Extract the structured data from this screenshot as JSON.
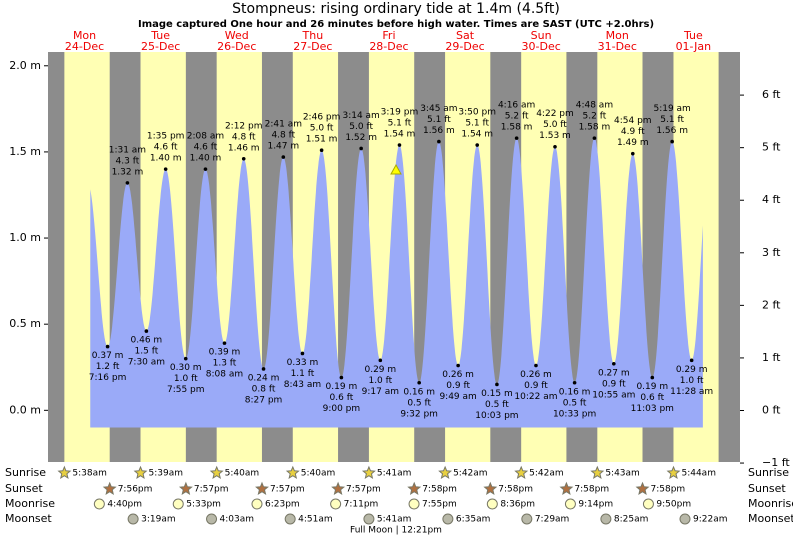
{
  "chart_data": {
    "type": "tide",
    "title": "Stompneus: rising  ordinary tide at 1.4m (4.5ft)",
    "subtitle": "Image captured One hour and 26 minutes before high water. Times are SAST (UTC +2.0hrs)",
    "ylim": [
      -0.3,
      2.08
    ],
    "yticks": [
      {
        "value": 0,
        "label": "0.0 m"
      },
      {
        "value": 0.5,
        "label": "0.5 m"
      },
      {
        "value": 1,
        "label": "1.0 m"
      },
      {
        "value": 1.5,
        "label": "1.5 m"
      },
      {
        "value": 2,
        "label": "2.0 m"
      }
    ],
    "y2lim": [
      -0.98,
      6.82
    ],
    "y2ticks": [
      {
        "value": -1,
        "label": "−1 ft"
      },
      {
        "value": 0,
        "label": "0 ft"
      },
      {
        "value": 1,
        "label": "1 ft"
      },
      {
        "value": 2,
        "label": "2 ft"
      },
      {
        "value": 3,
        "label": "3 ft"
      },
      {
        "value": 4,
        "label": "4 ft"
      },
      {
        "value": 5,
        "label": "5 ft"
      },
      {
        "value": 6,
        "label": "6 ft"
      }
    ],
    "row_labels": [
      "Sunrise",
      "Sunset",
      "Moonrise",
      "Moonset"
    ],
    "moon_phase": "Full Moon | 12:21pm",
    "days": [
      {
        "weekday": "Mon",
        "date": "24-Dec",
        "sunrise": "5:38am",
        "sunset": "7:56pm",
        "moonrise": "4:40pm",
        "moonset": null,
        "tides": [
          {
            "time": "7:16 pm",
            "m": {
              "value": 0.37,
              "label": "0.37 m"
            },
            "ft": {
              "value": 1.2,
              "label": "1.2 ft"
            }
          }
        ]
      },
      {
        "weekday": "Tue",
        "date": "25-Dec",
        "sunrise": "5:39am",
        "sunset": "7:57pm",
        "moonrise": "5:33pm",
        "moonset": "3:19am",
        "tides": [
          {
            "time": "1:31 am",
            "m": {
              "value": 1.32,
              "label": "1.32 m"
            },
            "ft": {
              "value": 4.3,
              "label": "4.3 ft"
            }
          },
          {
            "time": "7:30 am",
            "m": {
              "value": 0.46,
              "label": "0.46 m"
            },
            "ft": {
              "value": 1.5,
              "label": "1.5 ft"
            }
          },
          {
            "time": "1:35 pm",
            "m": {
              "value": 1.4,
              "label": "1.40 m"
            },
            "ft": {
              "value": 4.6,
              "label": "4.6 ft"
            }
          },
          {
            "time": "7:55 pm",
            "m": {
              "value": 0.3,
              "label": "0.30 m"
            },
            "ft": {
              "value": 1.0,
              "label": "1.0 ft"
            }
          }
        ]
      },
      {
        "weekday": "Wed",
        "date": "26-Dec",
        "sunrise": "5:40am",
        "sunset": "7:57pm",
        "moonrise": "6:23pm",
        "moonset": "4:03am",
        "tides": [
          {
            "time": "2:08 am",
            "m": {
              "value": 1.4,
              "label": "1.40 m"
            },
            "ft": {
              "value": 4.6,
              "label": "4.6 ft"
            }
          },
          {
            "time": "8:08 am",
            "m": {
              "value": 0.39,
              "label": "0.39 m"
            },
            "ft": {
              "value": 1.3,
              "label": "1.3 ft"
            }
          },
          {
            "time": "2:12 pm",
            "m": {
              "value": 1.46,
              "label": "1.46 m"
            },
            "ft": {
              "value": 4.8,
              "label": "4.8 ft"
            }
          },
          {
            "time": "8:27 pm",
            "m": {
              "value": 0.24,
              "label": "0.24 m"
            },
            "ft": {
              "value": 0.8,
              "label": "0.8 ft"
            }
          }
        ]
      },
      {
        "weekday": "Thu",
        "date": "27-Dec",
        "sunrise": "5:40am",
        "sunset": "7:57pm",
        "moonrise": "7:11pm",
        "moonset": "4:51am",
        "tides": [
          {
            "time": "2:41 am",
            "m": {
              "value": 1.47,
              "label": "1.47 m"
            },
            "ft": {
              "value": 4.8,
              "label": "4.8 ft"
            }
          },
          {
            "time": "8:43 am",
            "m": {
              "value": 0.33,
              "label": "0.33 m"
            },
            "ft": {
              "value": 1.1,
              "label": "1.1 ft"
            }
          },
          {
            "time": "2:46 pm",
            "m": {
              "value": 1.51,
              "label": "1.51 m"
            },
            "ft": {
              "value": 5.0,
              "label": "5.0 ft"
            }
          },
          {
            "time": "9:00 pm",
            "m": {
              "value": 0.19,
              "label": "0.19 m"
            },
            "ft": {
              "value": 0.6,
              "label": "0.6 ft"
            }
          }
        ]
      },
      {
        "weekday": "Fri",
        "date": "28-Dec",
        "sunrise": "5:41am",
        "sunset": "7:58pm",
        "moonrise": "7:55pm",
        "moonset": "5:41am",
        "tides": [
          {
            "time": "3:14 am",
            "m": {
              "value": 1.52,
              "label": "1.52 m"
            },
            "ft": {
              "value": 5.0,
              "label": "5.0 ft"
            }
          },
          {
            "time": "9:17 am",
            "m": {
              "value": 0.29,
              "label": "0.29 m"
            },
            "ft": {
              "value": 1.0,
              "label": "1.0 ft"
            }
          },
          {
            "time": "3:19 pm",
            "m": {
              "value": 1.54,
              "label": "1.54 m"
            },
            "ft": {
              "value": 5.1,
              "label": "5.1 ft"
            }
          },
          {
            "time": "9:32 pm",
            "m": {
              "value": 0.16,
              "label": "0.16 m"
            },
            "ft": {
              "value": 0.5,
              "label": "0.5 ft"
            }
          }
        ]
      },
      {
        "weekday": "Sat",
        "date": "29-Dec",
        "sunrise": "5:42am",
        "sunset": "7:58pm",
        "moonrise": "8:36pm",
        "moonset": "6:35am",
        "tides": [
          {
            "time": "3:45 am",
            "m": {
              "value": 1.56,
              "label": "1.56 m"
            },
            "ft": {
              "value": 5.1,
              "label": "5.1 ft"
            }
          },
          {
            "time": "9:49 am",
            "m": {
              "value": 0.26,
              "label": "0.26 m"
            },
            "ft": {
              "value": 0.9,
              "label": "0.9 ft"
            }
          },
          {
            "time": "3:50 pm",
            "m": {
              "value": 1.54,
              "label": "1.54 m"
            },
            "ft": {
              "value": 5.1,
              "label": "5.1 ft"
            }
          },
          {
            "time": "10:03 pm",
            "m": {
              "value": 0.15,
              "label": "0.15 m"
            },
            "ft": {
              "value": 0.5,
              "label": "0.5 ft"
            }
          }
        ]
      },
      {
        "weekday": "Sun",
        "date": "30-Dec",
        "sunrise": "5:42am",
        "sunset": "7:58pm",
        "moonrise": "9:14pm",
        "moonset": "7:29am",
        "tides": [
          {
            "time": "4:16 am",
            "m": {
              "value": 1.58,
              "label": "1.58 m"
            },
            "ft": {
              "value": 5.2,
              "label": "5.2 ft"
            }
          },
          {
            "time": "10:22 am",
            "m": {
              "value": 0.26,
              "label": "0.26 m"
            },
            "ft": {
              "value": 0.9,
              "label": "0.9 ft"
            }
          },
          {
            "time": "4:22 pm",
            "m": {
              "value": 1.53,
              "label": "1.53 m"
            },
            "ft": {
              "value": 5.0,
              "label": "5.0 ft"
            }
          },
          {
            "time": "10:33 pm",
            "m": {
              "value": 0.16,
              "label": "0.16 m"
            },
            "ft": {
              "value": 0.5,
              "label": "0.5 ft"
            }
          }
        ]
      },
      {
        "weekday": "Mon",
        "date": "31-Dec",
        "sunrise": "5:43am",
        "sunset": "7:58pm",
        "moonrise": "9:50pm",
        "moonset": "8:25am",
        "tides": [
          {
            "time": "4:48 am",
            "m": {
              "value": 1.58,
              "label": "1.58 m"
            },
            "ft": {
              "value": 5.2,
              "label": "5.2 ft"
            }
          },
          {
            "time": "10:55 am",
            "m": {
              "value": 0.27,
              "label": "0.27 m"
            },
            "ft": {
              "value": 0.9,
              "label": "0.9 ft"
            }
          },
          {
            "time": "4:54 pm",
            "m": {
              "value": 1.49,
              "label": "1.49 m"
            },
            "ft": {
              "value": 4.9,
              "label": "4.9 ft"
            }
          },
          {
            "time": "11:03 pm",
            "m": {
              "value": 0.19,
              "label": "0.19 m"
            },
            "ft": {
              "value": 0.6,
              "label": "0.6 ft"
            }
          }
        ]
      },
      {
        "weekday": "Tue",
        "date": "01-Jan",
        "sunrise": "5:44am",
        "sunset": null,
        "moonrise": null,
        "moonset": "9:22am",
        "tides": [
          {
            "time": "5:19 am",
            "m": {
              "value": 1.56,
              "label": "1.56 m"
            },
            "ft": {
              "value": 5.1,
              "label": "5.1 ft"
            }
          },
          {
            "time": "11:28 am",
            "m": {
              "value": 0.29,
              "label": "0.29 m"
            },
            "ft": {
              "value": 1.0,
              "label": "1.0 ft"
            }
          }
        ]
      }
    ]
  }
}
